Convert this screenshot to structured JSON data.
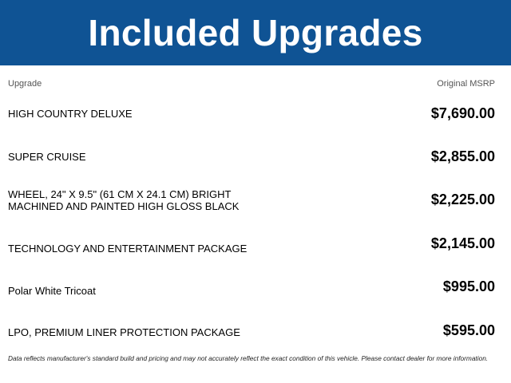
{
  "header": {
    "title": "Included Upgrades",
    "background_color": "#0f5394"
  },
  "columns": {
    "upgrade": "Upgrade",
    "msrp": "Original MSRP"
  },
  "upgrades": [
    {
      "name": "HIGH COUNTRY DELUXE",
      "price": "$7,690.00"
    },
    {
      "name": "SUPER CRUISE",
      "price": "$2,855.00"
    },
    {
      "name": "WHEEL, 24\" X 9.5\" (61 CM X 24.1 CM) BRIGHT MACHINED AND PAINTED HIGH GLOSS BLACK",
      "price": "$2,225.00"
    },
    {
      "name": "TECHNOLOGY AND ENTERTAINMENT PACKAGE",
      "price": "$2,145.00"
    },
    {
      "name": "Polar White Tricoat",
      "price": "$995.00"
    },
    {
      "name": "LPO, PREMIUM LINER PROTECTION PACKAGE",
      "price": "$595.00"
    }
  ],
  "disclaimer": "Data reflects manufacturer's standard build and pricing and may not accurately reflect the exact condition of this vehicle. Please contact dealer for more information."
}
